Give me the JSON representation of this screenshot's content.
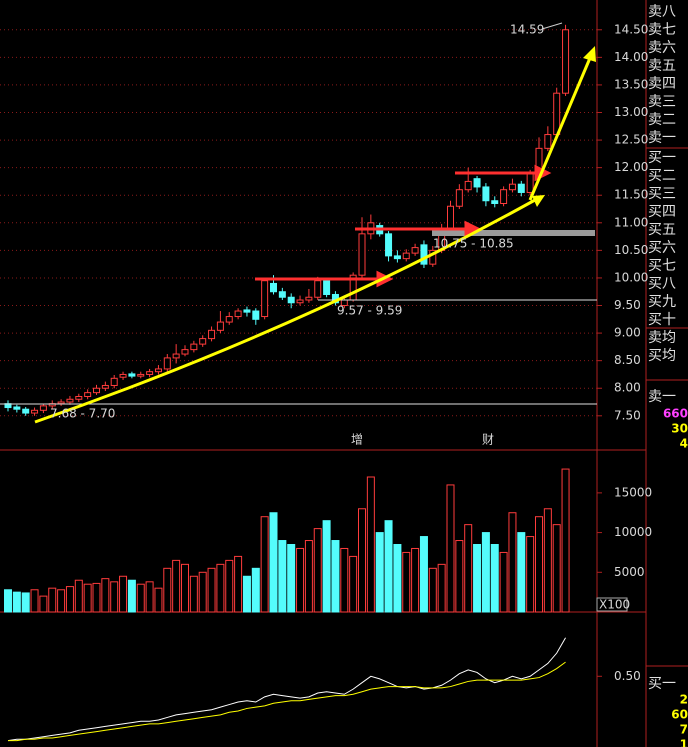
{
  "chart_data": [
    {
      "type": "candlestick",
      "open": [
        7.72,
        7.66,
        7.62,
        7.55,
        7.6,
        7.68,
        7.72,
        7.75,
        7.8,
        7.85,
        7.92,
        8.0,
        8.05,
        8.2,
        8.26,
        8.22,
        8.25,
        8.3,
        8.35,
        8.55,
        8.62,
        8.7,
        8.8,
        8.9,
        9.05,
        9.2,
        9.3,
        9.42,
        9.4,
        9.3,
        9.9,
        9.75,
        9.65,
        9.55,
        9.6,
        9.65,
        9.95,
        9.7,
        9.5,
        9.6,
        10.05,
        10.8,
        10.95,
        10.8,
        10.4,
        10.35,
        10.45,
        10.6,
        10.25,
        10.5,
        10.9,
        11.3,
        11.6,
        11.8,
        11.65,
        11.4,
        11.35,
        11.6,
        11.7,
        11.55,
        11.9,
        12.35,
        12.6,
        13.35
      ],
      "high": [
        7.78,
        7.7,
        7.66,
        7.65,
        7.72,
        7.78,
        7.8,
        7.86,
        7.9,
        7.98,
        8.06,
        8.12,
        8.24,
        8.3,
        8.3,
        8.3,
        8.35,
        8.42,
        8.62,
        8.8,
        8.78,
        8.86,
        8.96,
        9.12,
        9.4,
        9.38,
        9.45,
        9.48,
        9.45,
        10.0,
        10.05,
        9.82,
        9.72,
        9.68,
        9.8,
        10.02,
        10.0,
        9.76,
        9.68,
        10.1,
        11.1,
        11.15,
        11.0,
        10.85,
        10.5,
        10.52,
        10.62,
        10.68,
        10.58,
        10.98,
        11.4,
        11.7,
        12.0,
        11.85,
        11.72,
        11.48,
        11.66,
        11.8,
        11.76,
        11.96,
        12.55,
        12.75,
        13.45,
        14.59
      ],
      "low": [
        7.58,
        7.56,
        7.5,
        7.5,
        7.55,
        7.62,
        7.68,
        7.7,
        7.75,
        7.8,
        7.88,
        7.95,
        8.0,
        8.15,
        8.18,
        8.18,
        8.2,
        8.25,
        8.3,
        8.45,
        8.58,
        8.65,
        8.75,
        8.85,
        9.0,
        9.15,
        9.25,
        9.3,
        9.15,
        9.25,
        9.7,
        9.6,
        9.45,
        9.5,
        9.55,
        9.6,
        9.65,
        9.5,
        9.45,
        9.57,
        10.0,
        10.7,
        10.75,
        10.3,
        10.28,
        10.3,
        10.4,
        10.18,
        10.2,
        10.45,
        10.85,
        11.25,
        11.55,
        11.55,
        11.3,
        11.28,
        11.3,
        11.55,
        11.48,
        11.5,
        11.85,
        12.3,
        12.55,
        13.3
      ],
      "close": [
        7.65,
        7.62,
        7.55,
        7.6,
        7.68,
        7.72,
        7.75,
        7.8,
        7.85,
        7.92,
        8.0,
        8.05,
        8.18,
        8.25,
        8.22,
        8.25,
        8.3,
        8.35,
        8.55,
        8.62,
        8.7,
        8.8,
        8.9,
        9.05,
        9.2,
        9.3,
        9.4,
        9.38,
        9.25,
        9.95,
        9.75,
        9.65,
        9.55,
        9.6,
        9.65,
        9.95,
        9.7,
        9.55,
        9.6,
        10.05,
        10.8,
        11.0,
        10.8,
        10.4,
        10.35,
        10.45,
        10.55,
        10.25,
        10.5,
        10.9,
        11.3,
        11.6,
        11.75,
        11.65,
        11.4,
        11.35,
        11.6,
        11.7,
        11.55,
        11.9,
        12.35,
        12.6,
        13.35,
        14.5
      ],
      "up_color": "#ff3c3c",
      "down_color": "#54fcfc",
      "ylim": [
        6.88,
        15.04
      ],
      "yticks": [
        {
          "value": 7.5,
          "label": "7.50"
        },
        {
          "value": 8,
          "label": "8.00"
        },
        {
          "value": 8.5,
          "label": "8.50"
        },
        {
          "value": 9,
          "label": "9.00"
        },
        {
          "value": 9.5,
          "label": "9.50"
        },
        {
          "value": 10,
          "label": "10.00"
        },
        {
          "value": 10.5,
          "label": "10.50"
        },
        {
          "value": 11,
          "label": "11.00"
        },
        {
          "value": 11.5,
          "label": "11.50"
        },
        {
          "value": 12,
          "label": "12.00"
        },
        {
          "value": 12.5,
          "label": "12.50"
        },
        {
          "value": 13,
          "label": "13.00"
        },
        {
          "value": 13.5,
          "label": "13.50"
        },
        {
          "value": 14,
          "label": "14.00"
        },
        {
          "value": 14.5,
          "label": "14.50"
        }
      ],
      "grid": true,
      "annotations": [
        "14.59",
        "7.68 - 7.70",
        "9.57 - 9.59",
        "10.75 - 10.85",
        "增",
        "财"
      ]
    },
    {
      "type": "bar",
      "values": [
        2800,
        2500,
        2400,
        2800,
        2000,
        3000,
        2800,
        3200,
        4000,
        3500,
        3600,
        4200,
        3800,
        4500,
        4000,
        3500,
        3800,
        3000,
        5500,
        6500,
        6000,
        4500,
        5000,
        5500,
        6000,
        6500,
        7000,
        4500,
        5500,
        12000,
        12500,
        9000,
        8500,
        8000,
        9000,
        10500,
        11500,
        9000,
        8000,
        7000,
        13000,
        17000,
        10000,
        11500,
        8500,
        7500,
        8000,
        9500,
        5500,
        6000,
        16000,
        9000,
        11000,
        8500,
        10000,
        8500,
        7500,
        12500,
        10000,
        9500,
        12000,
        13000,
        11000,
        18000
      ],
      "ylim": [
        0,
        20400
      ],
      "yticks": [
        5000,
        10000,
        15000
      ],
      "unit_label": "X100"
    },
    {
      "type": "line",
      "series": [
        {
          "color": "#ffffff",
          "values": [
            0,
            0.01,
            0.01,
            0.02,
            0.03,
            0.04,
            0.05,
            0.06,
            0.08,
            0.09,
            0.1,
            0.11,
            0.12,
            0.13,
            0.14,
            0.15,
            0.15,
            0.16,
            0.18,
            0.2,
            0.21,
            0.22,
            0.23,
            0.24,
            0.26,
            0.28,
            0.3,
            0.31,
            0.3,
            0.34,
            0.36,
            0.35,
            0.34,
            0.33,
            0.34,
            0.37,
            0.38,
            0.37,
            0.36,
            0.4,
            0.45,
            0.5,
            0.48,
            0.45,
            0.42,
            0.41,
            0.42,
            0.4,
            0.41,
            0.43,
            0.47,
            0.52,
            0.55,
            0.53,
            0.48,
            0.45,
            0.47,
            0.5,
            0.48,
            0.5,
            0.55,
            0.6,
            0.68,
            0.8
          ]
        },
        {
          "color": "#ffff00",
          "values": [
            0,
            0,
            0.01,
            0.01,
            0.02,
            0.02,
            0.03,
            0.04,
            0.05,
            0.06,
            0.07,
            0.08,
            0.09,
            0.1,
            0.11,
            0.12,
            0.13,
            0.13,
            0.14,
            0.15,
            0.16,
            0.17,
            0.18,
            0.19,
            0.2,
            0.22,
            0.23,
            0.25,
            0.26,
            0.27,
            0.29,
            0.3,
            0.31,
            0.31,
            0.32,
            0.33,
            0.34,
            0.35,
            0.35,
            0.36,
            0.38,
            0.4,
            0.41,
            0.42,
            0.42,
            0.42,
            0.42,
            0.41,
            0.41,
            0.41,
            0.42,
            0.44,
            0.46,
            0.47,
            0.47,
            0.47,
            0.47,
            0.47,
            0.47,
            0.48,
            0.49,
            0.52,
            0.56,
            0.61
          ]
        }
      ],
      "ylim": [
        -0.05,
        1.0
      ],
      "yticks": [
        {
          "value": 0.5,
          "label": "0.50"
        }
      ]
    }
  ],
  "order_book": {
    "ask_labels": [
      "卖八",
      "卖七",
      "卖六",
      "卖五",
      "卖四",
      "卖三",
      "卖二",
      "卖一"
    ],
    "bid_labels": [
      "买一",
      "买二",
      "买三",
      "买四",
      "买五",
      "买六",
      "买七",
      "买八",
      "买九",
      "买十"
    ],
    "avg_labels": [
      "卖均",
      "买均"
    ],
    "ask1": {
      "label": "卖一",
      "values": [
        660,
        30,
        4
      ]
    },
    "bid1": {
      "label": "买一",
      "values": [
        2,
        60,
        7,
        1
      ]
    }
  }
}
